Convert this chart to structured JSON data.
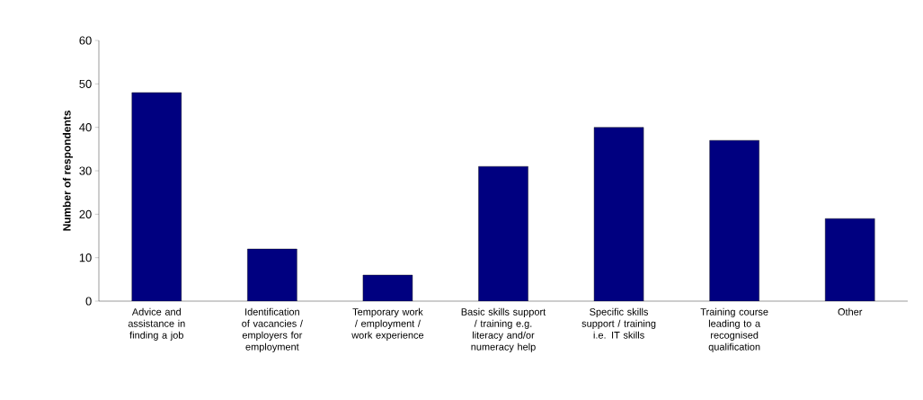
{
  "chart_data": {
    "type": "bar",
    "ylabel": "Number of respondents",
    "categories": [
      "Advice and assistance in finding a job",
      "Identification of vacancies / employers for employment",
      "Temporary work / employment / work experience",
      "Basic skills support / training e.g. literacy and/or numeracy help",
      "Specific skills support / training i.e. IT skills",
      "Training course leading to a recognised qualification",
      "Other"
    ],
    "values": [
      48,
      12,
      6,
      31,
      40,
      37,
      19
    ],
    "color": "#000080",
    "ylim": [
      0,
      60
    ],
    "yticks": [
      0,
      10,
      20,
      30,
      40,
      50,
      60
    ],
    "grid": false
  }
}
